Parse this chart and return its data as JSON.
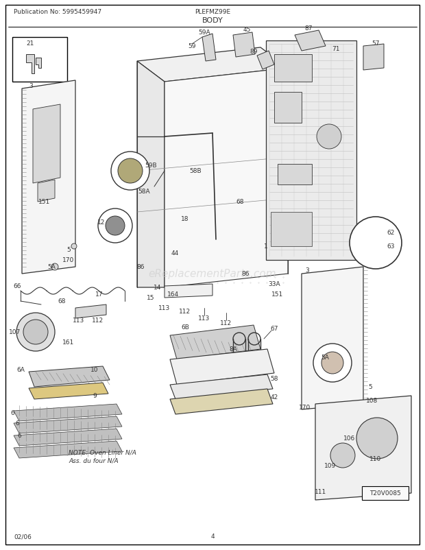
{
  "pub_no": "Publication No: 5995459947",
  "model": "PLEFMZ99E",
  "section": "BODY",
  "date": "02/06",
  "page": "4",
  "watermark": "eReplacementParts.com",
  "tag": "T20V0085",
  "note_line1": "NOTE: Oven Liner N/A",
  "note_line2": "Ass. du four N/A",
  "bg_color": "#ffffff",
  "line_color": "#333333",
  "light_gray": "#d8d8d8",
  "mid_gray": "#b0b0b0",
  "dark_gray": "#888888",
  "watermark_color": "#cccccc",
  "fig_w": 6.2,
  "fig_h": 8.03,
  "dpi": 100
}
